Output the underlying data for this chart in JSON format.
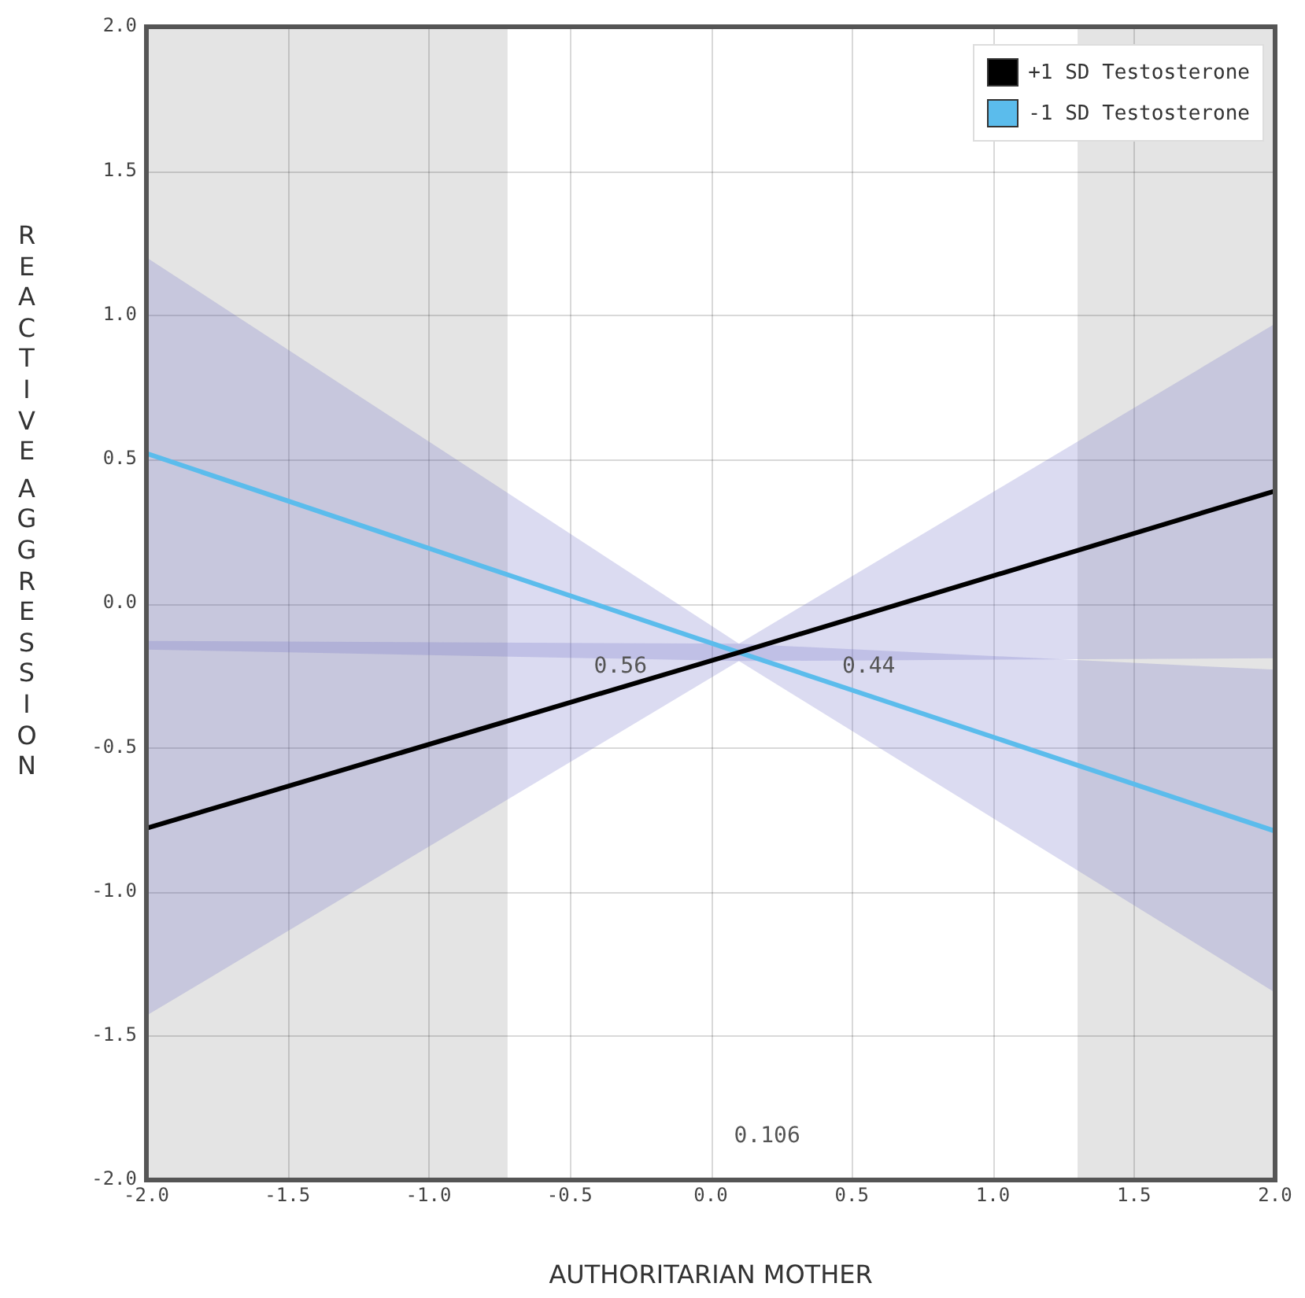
{
  "chart_data": {
    "type": "line",
    "xlabel": "AUTHORITARIAN MOTHER",
    "ylabel": "REACTIVE AGGRESSION",
    "series": [
      {
        "name": "+1 SD Testosterone",
        "color": "#000000",
        "x": [
          -2,
          0.1,
          2
        ],
        "values": [
          -0.78,
          -0.17,
          0.39
        ],
        "lower": [
          -1.43,
          -0.2,
          -0.19
        ],
        "upper": [
          -0.13,
          -0.14,
          0.97
        ]
      },
      {
        "name": "-1 SD Testosterone",
        "color": "#5bbcec",
        "x": [
          -2,
          0.1,
          2
        ],
        "values": [
          0.52,
          -0.17,
          -0.79
        ],
        "lower": [
          -0.16,
          -0.2,
          -1.35
        ],
        "upper": [
          1.2,
          -0.14,
          -0.23
        ]
      }
    ],
    "xlim": [
      -2,
      2
    ],
    "ylim": [
      -2,
      2
    ],
    "xticks": [
      {
        "value": -2,
        "label": "-2.0"
      },
      {
        "value": -1.5,
        "label": "-1.5"
      },
      {
        "value": -1,
        "label": "-1.0"
      },
      {
        "value": -0.5,
        "label": "-0.5"
      },
      {
        "value": 0,
        "label": "0.0"
      },
      {
        "value": 0.5,
        "label": "0.5"
      },
      {
        "value": 1,
        "label": "1.0"
      },
      {
        "value": 1.5,
        "label": "1.5"
      },
      {
        "value": 2,
        "label": "2.0"
      }
    ],
    "yticks": [
      {
        "value": -2,
        "label": "-2.0"
      },
      {
        "value": -1.5,
        "label": "-1.5"
      },
      {
        "value": -1,
        "label": "-1.0"
      },
      {
        "value": -0.5,
        "label": "-0.5"
      },
      {
        "value": 0,
        "label": "0.0"
      },
      {
        "value": 0.5,
        "label": "0.5"
      },
      {
        "value": 1,
        "label": "1.0"
      },
      {
        "value": 1.5,
        "label": "1.5"
      },
      {
        "value": 2,
        "label": "2.0"
      }
    ],
    "bands": [
      {
        "axis": "x",
        "from": -2,
        "to": -0.72,
        "color": "#e4e4e4"
      },
      {
        "axis": "x",
        "from": 1.3,
        "to": 2,
        "color": "#e4e4e4"
      }
    ],
    "annotations": [
      "0.56",
      "0.44",
      "0.106"
    ],
    "grid": true,
    "legend": "top right",
    "marker": "none",
    "line_style": "solid"
  }
}
